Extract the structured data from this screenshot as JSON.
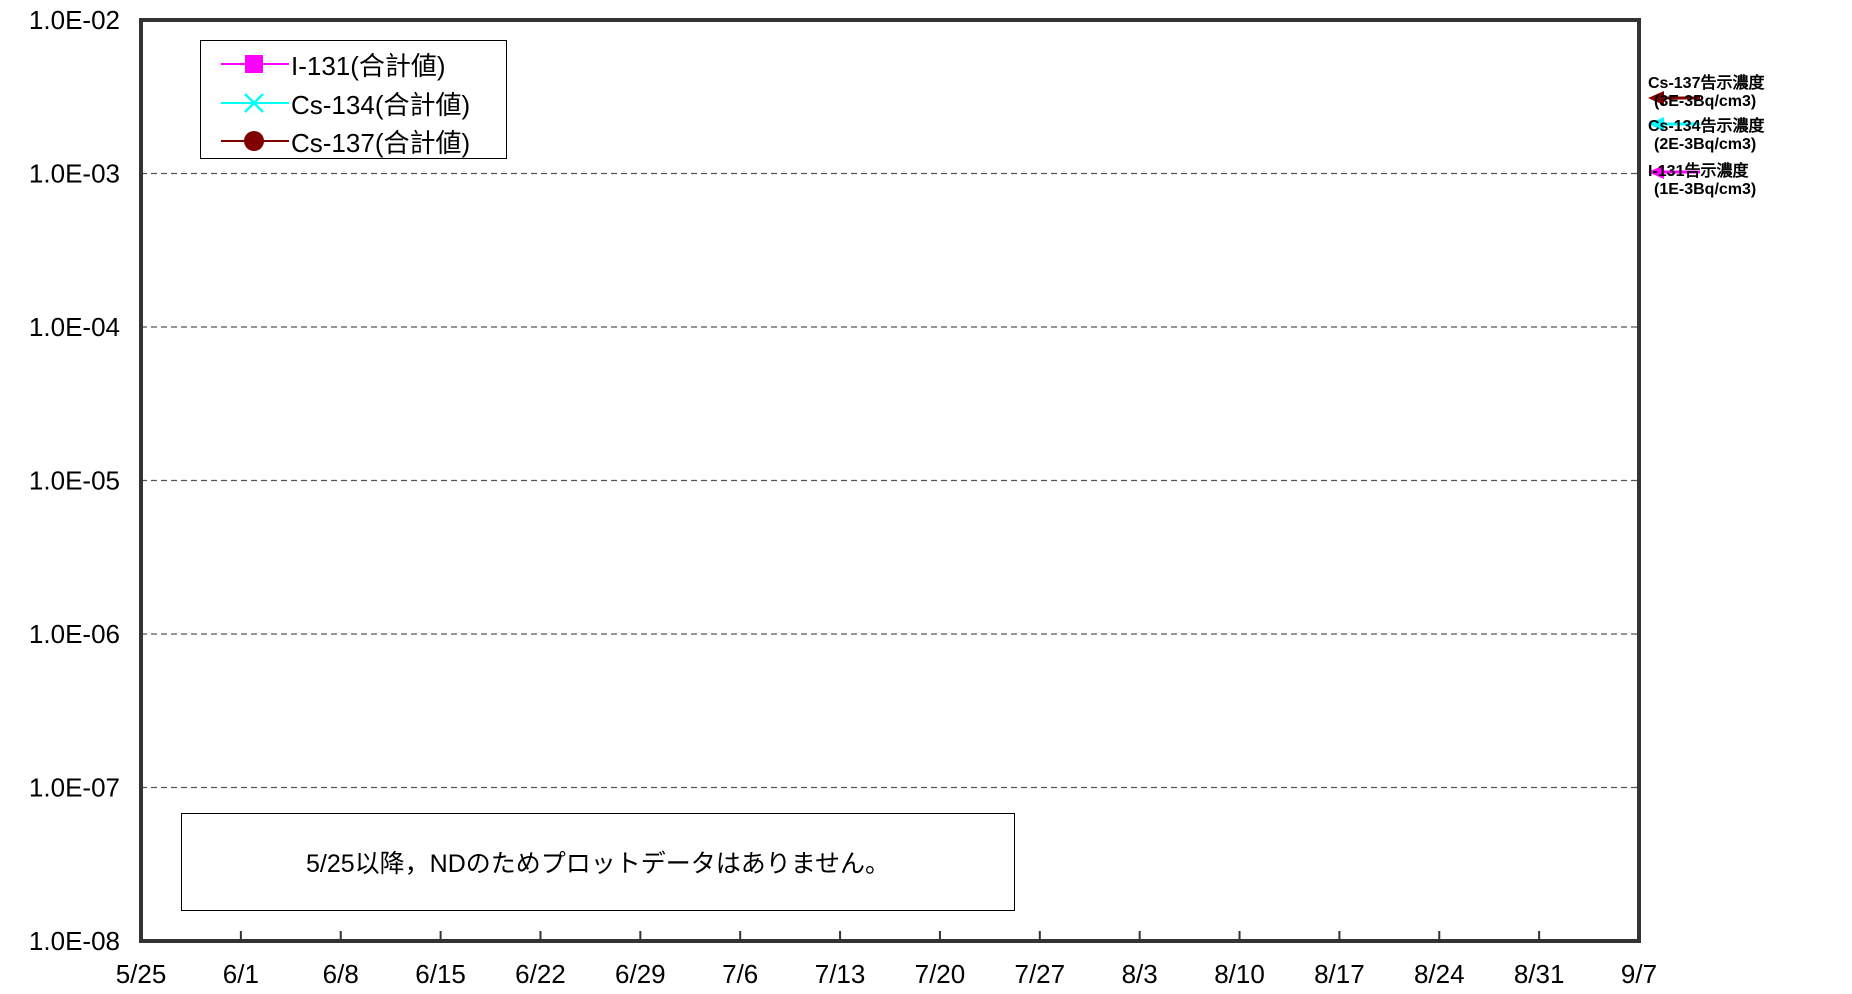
{
  "chart_data": {
    "type": "line",
    "title": "",
    "xlabel": "",
    "ylabel": "",
    "y_scale": "log",
    "ylim": [
      1e-08,
      0.01
    ],
    "y_ticks": [
      "1.0E-08",
      "1.0E-07",
      "1.0E-06",
      "1.0E-05",
      "1.0E-04",
      "1.0E-03",
      "1.0E-02"
    ],
    "x_ticks": [
      "5/25",
      "6/1",
      "6/8",
      "6/15",
      "6/22",
      "6/29",
      "7/6",
      "7/13",
      "7/20",
      "7/27",
      "8/3",
      "8/10",
      "8/17",
      "8/24",
      "8/31",
      "9/7"
    ],
    "grid": "horizontal-dashed",
    "legend_position": "top-left",
    "series": [
      {
        "name": "I-131(合計値)",
        "color": "#ff00ff",
        "marker": "square",
        "values": []
      },
      {
        "name": "Cs-134(合計値)",
        "color": "#00ffff",
        "marker": "x",
        "values": []
      },
      {
        "name": "Cs-137(合計値)",
        "color": "#800000",
        "marker": "circle",
        "values": []
      }
    ],
    "reference_limits": [
      {
        "label": "Cs-137告示濃度",
        "value_text": "(3E-3Bq/cm3)",
        "value": 0.003,
        "color": "#800000"
      },
      {
        "label": "Cs-134告示濃度",
        "value_text": "(2E-3Bq/cm3)",
        "value": 0.002,
        "color": "#00ffff"
      },
      {
        "label": "I-131告示濃度",
        "value_text": "(1E-3Bq/cm3)",
        "value": 0.001,
        "color": "#ff00ff"
      }
    ],
    "annotation": "5/25以降，NDのためプロットデータはありません。"
  }
}
